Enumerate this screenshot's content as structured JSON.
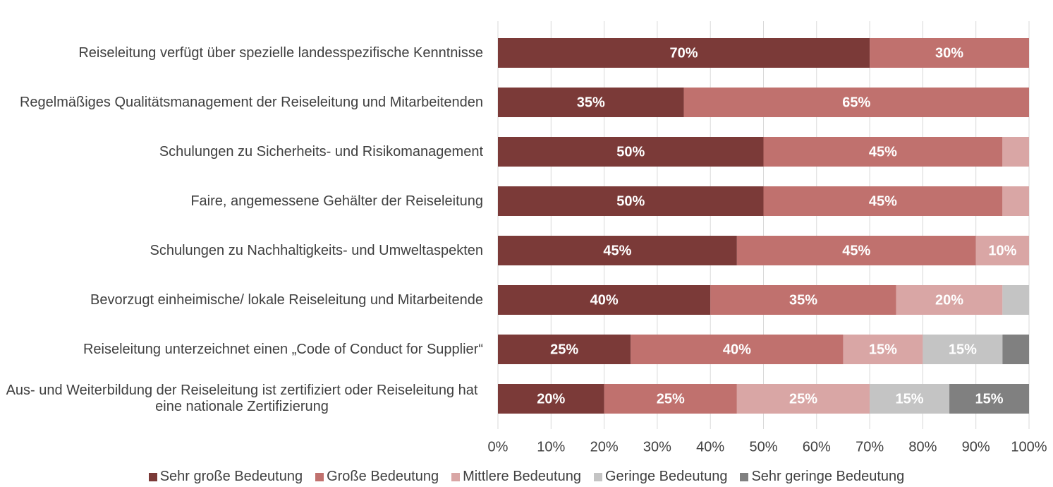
{
  "chart_data": {
    "type": "stacked_bar_horizontal",
    "categories": [
      "Reiseleitung verfügt über spezielle landesspezifische Kenntnisse",
      "Regelmäßiges Qualitätsmanagement der Reiseleitung und Mitarbeitenden",
      "Schulungen zu Sicherheits- und Risikomanagement",
      "Faire, angemessene Gehälter der Reiseleitung",
      "Schulungen zu Nachhaltigkeits- und Umweltaspekten",
      "Bevorzugt einheimische/ lokale Reiseleitung und Mitarbeitende",
      "Reiseleitung unterzeichnet einen „Code of Conduct for Supplier“",
      "Aus- und Weiterbildung der Reiseleitung ist zertifiziert oder Reiseleitung hat eine nationale Zertifizierung"
    ],
    "series": [
      {
        "name": "Sehr große Bedeutung",
        "color": "#7b3a38",
        "values": [
          70,
          35,
          50,
          50,
          45,
          40,
          25,
          20
        ],
        "value_labels": [
          "70%",
          "35%",
          "50%",
          "50%",
          "45%",
          "40%",
          "25%",
          "20%"
        ]
      },
      {
        "name": "Große Bedeutung",
        "color": "#c0716e",
        "values": [
          30,
          65,
          45,
          45,
          45,
          35,
          40,
          25
        ],
        "value_labels": [
          "30%",
          "65%",
          "45%",
          "45%",
          "45%",
          "35%",
          "40%",
          "25%"
        ]
      },
      {
        "name": "Mittlere Bedeutung",
        "color": "#d9a6a5",
        "values": [
          0,
          0,
          5,
          5,
          10,
          20,
          15,
          25
        ],
        "value_labels": [
          null,
          null,
          null,
          null,
          "10%",
          "20%",
          "15%",
          "25%"
        ]
      },
      {
        "name": "Geringe Bedeutung",
        "color": "#c4c4c4",
        "values": [
          0,
          0,
          0,
          0,
          0,
          5,
          15,
          15
        ],
        "value_labels": [
          null,
          null,
          null,
          null,
          null,
          null,
          "15%",
          "15%"
        ]
      },
      {
        "name": "Sehr geringe Bedeutung",
        "color": "#808080",
        "values": [
          0,
          0,
          0,
          0,
          0,
          0,
          5,
          15
        ],
        "value_labels": [
          null,
          null,
          null,
          null,
          null,
          null,
          null,
          "15%"
        ]
      }
    ],
    "xlim": [
      0,
      100
    ],
    "xticks": [
      {
        "value": 0,
        "label": "0%"
      },
      {
        "value": 10,
        "label": "10%"
      },
      {
        "value": 20,
        "label": "20%"
      },
      {
        "value": 30,
        "label": "30%"
      },
      {
        "value": 40,
        "label": "40%"
      },
      {
        "value": 50,
        "label": "50%"
      },
      {
        "value": 60,
        "label": "60%"
      },
      {
        "value": 70,
        "label": "70%"
      },
      {
        "value": 80,
        "label": "80%"
      },
      {
        "value": 90,
        "label": "90%"
      },
      {
        "value": 100,
        "label": "100%"
      }
    ],
    "grid": true,
    "legend": "bottom"
  }
}
